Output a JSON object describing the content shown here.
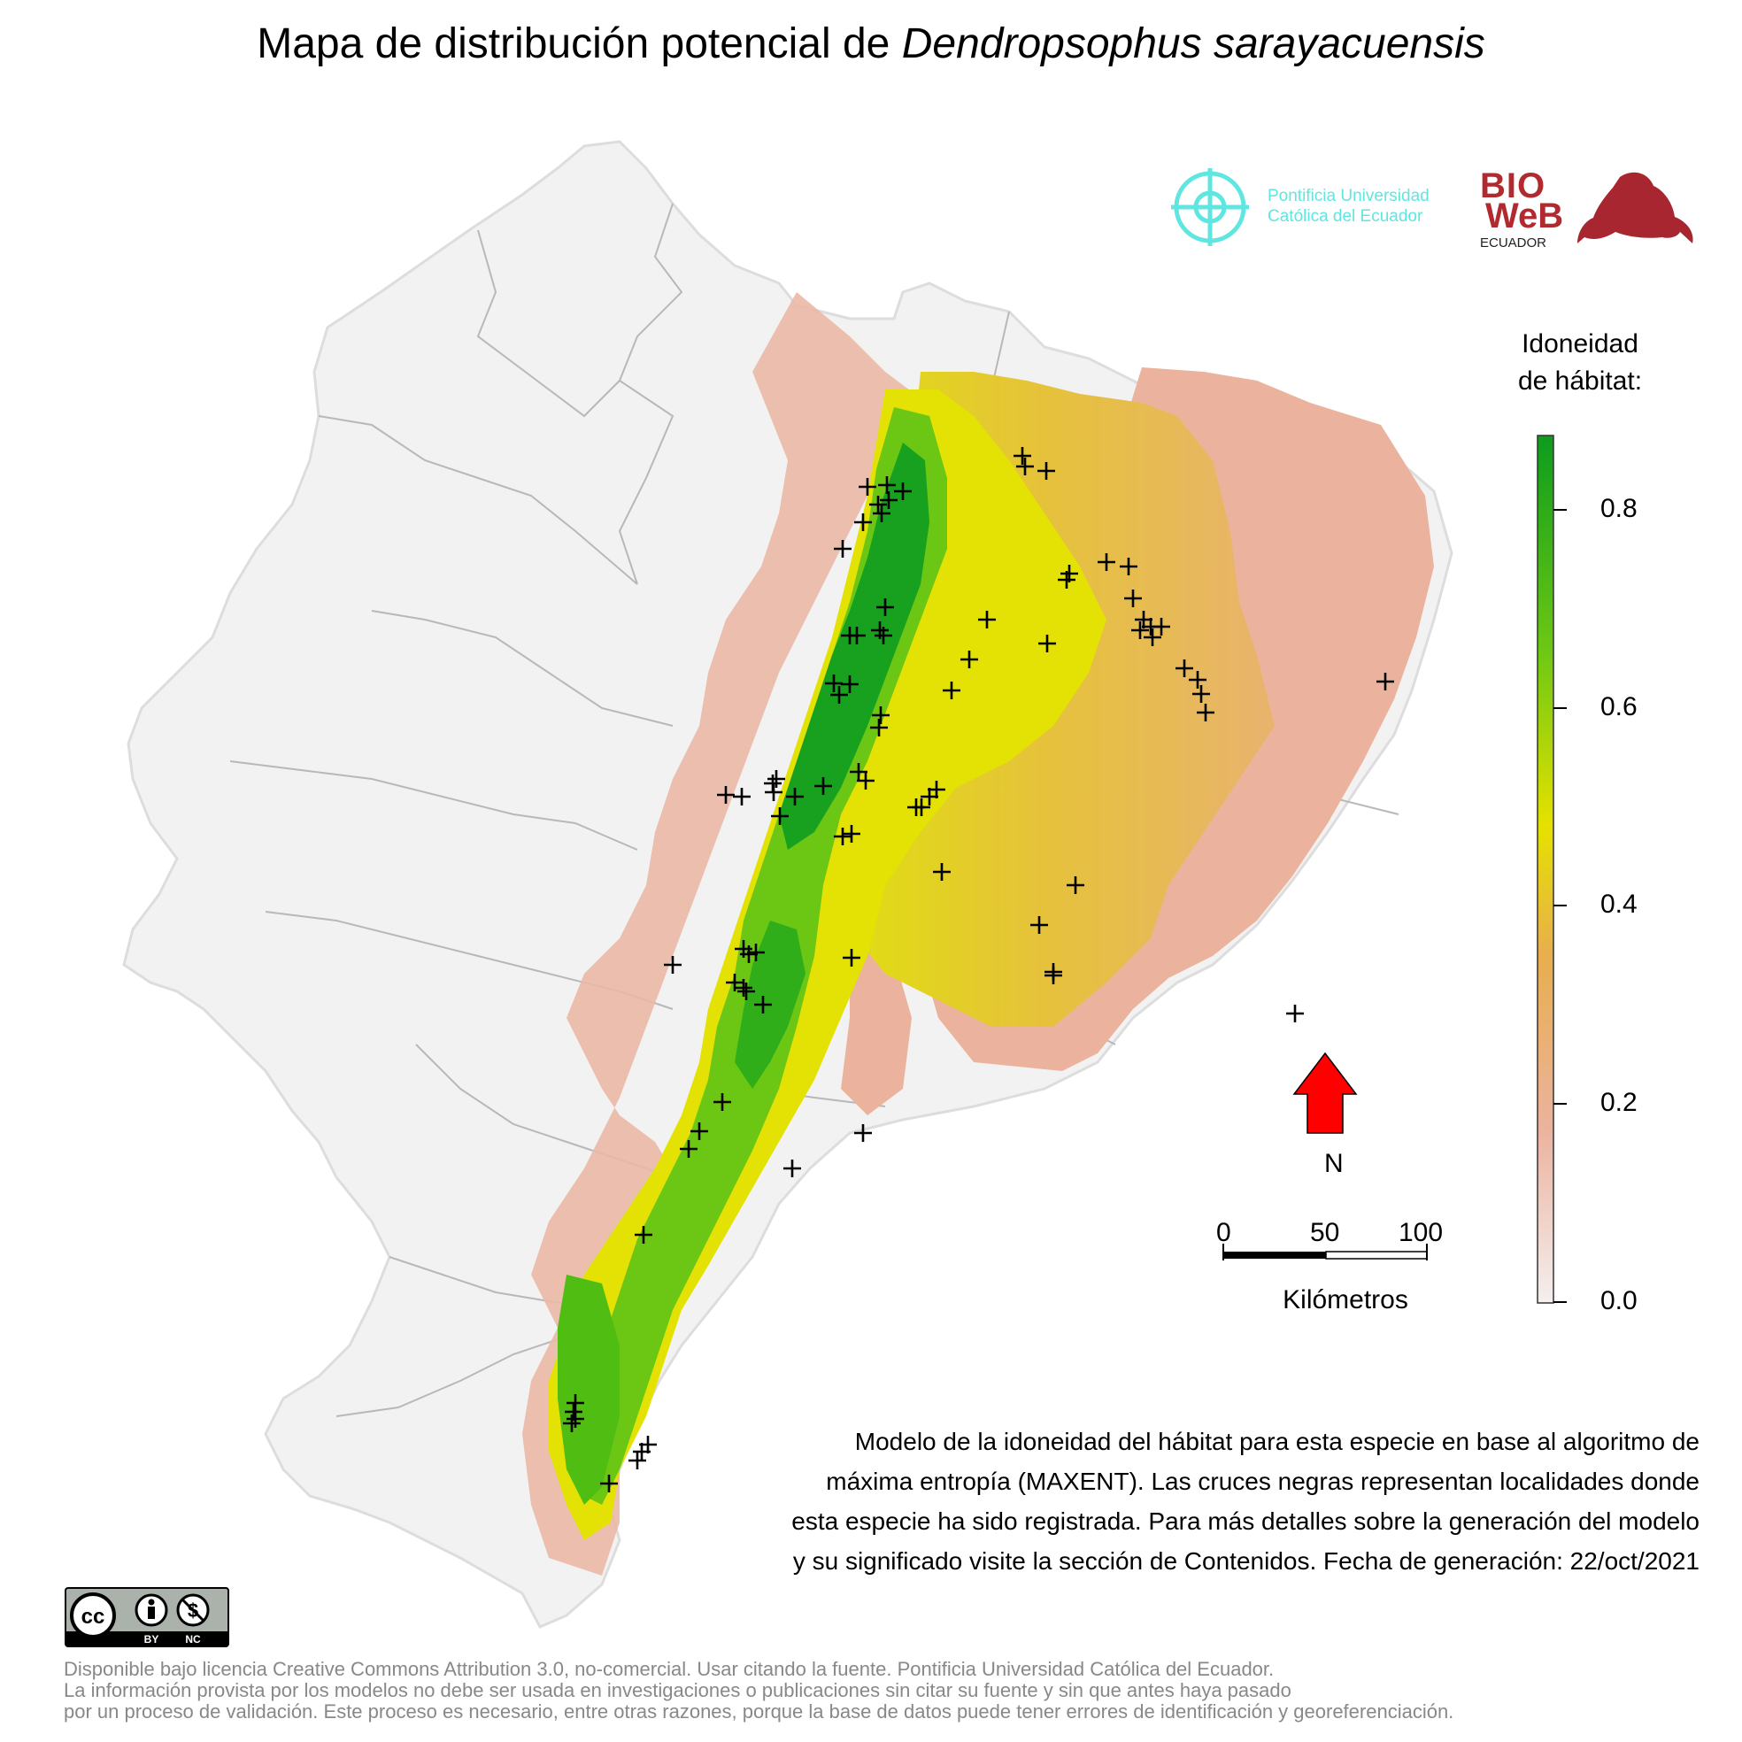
{
  "title": {
    "prefix": "Mapa de distribución potencial de ",
    "species": "Dendropsophus sarayacuensis"
  },
  "logos": {
    "puce_line1": "Pontificia Universidad",
    "puce_line2": "Católica del Ecuador",
    "bioweb_line1": "BIO",
    "bioweb_line2": "WeB",
    "bioweb_line3": "ECUADOR"
  },
  "legend": {
    "title_line1": "Idoneidad",
    "title_line2": "de hábitat:",
    "ticks": [
      "0.8",
      "0.6",
      "0.4",
      "0.2",
      "0.0"
    ],
    "colors": [
      "#f2f2f2",
      "#ebb39e",
      "#e8ae4e",
      "#e6e100",
      "#5ec50e",
      "#0c9c1c"
    ]
  },
  "scale_bar": {
    "labels": [
      "0",
      "50",
      "100"
    ],
    "unit": "Kilómetros"
  },
  "north": {
    "label": "N",
    "color": "#ff0000"
  },
  "description": [
    "Modelo de la idoneidad del hábitat para esta especie en base al algoritmo de",
    "máxima entropía (MAXENT). Las cruces negras representan localidades donde",
    "esta especie ha sido registrada. Para más detalles sobre la generación del modelo",
    "y su significado visite la sección de Contenidos. Fecha de generación: 22/oct/2021"
  ],
  "cc_badge": {
    "by": "BY",
    "nc": "NC"
  },
  "license": [
    "Disponible bajo licencia Creative Commons Attribution 3.0, no-comercial. Usar citando la fuente. Pontificia Universidad Católica del Ecuador.",
    "La información provista por los modelos no debe ser usada en investigaciones o publicaciones sin citar su fuente y sin que antes haya pasado",
    "por un proceso de validación. Este proceso es necesario, entre otras razones, porque la base de datos puede tener errores de identificación y georeferenciación."
  ],
  "records": [
    [
      1155,
      515
    ],
    [
      980,
      550
    ],
    [
      1020,
      555
    ],
    [
      1004,
      565
    ],
    [
      992,
      570
    ],
    [
      996,
      580
    ],
    [
      975,
      590
    ],
    [
      952,
      620
    ],
    [
      1002,
      548
    ],
    [
      1000,
      686
    ],
    [
      960,
      718
    ],
    [
      968,
      718
    ],
    [
      994,
      712
    ],
    [
      998,
      718
    ],
    [
      1115,
      700
    ],
    [
      1095,
      745
    ],
    [
      1075,
      780
    ],
    [
      1205,
      655
    ],
    [
      1275,
      640
    ],
    [
      1250,
      635
    ],
    [
      1183,
      727
    ],
    [
      1280,
      676
    ],
    [
      1292,
      700
    ],
    [
      1300,
      708
    ],
    [
      1288,
      712
    ],
    [
      1312,
      708
    ],
    [
      1302,
      720
    ],
    [
      1338,
      755
    ],
    [
      1353,
      768
    ],
    [
      1357,
      784
    ],
    [
      1362,
      805
    ],
    [
      1565,
      770
    ],
    [
      1182,
      532
    ],
    [
      1208,
      648
    ],
    [
      1158,
      527
    ],
    [
      948,
      785
    ],
    [
      942,
      772
    ],
    [
      960,
      773
    ],
    [
      995,
      808
    ],
    [
      993,
      822
    ],
    [
      820,
      898
    ],
    [
      838,
      900
    ],
    [
      873,
      885
    ],
    [
      877,
      880
    ],
    [
      874,
      895
    ],
    [
      898,
      900
    ],
    [
      930,
      888
    ],
    [
      970,
      872
    ],
    [
      978,
      882
    ],
    [
      1050,
      900
    ],
    [
      1058,
      892
    ],
    [
      1035,
      912
    ],
    [
      1041,
      912
    ],
    [
      881,
      922
    ],
    [
      952,
      945
    ],
    [
      962,
      942
    ],
    [
      1064,
      985
    ],
    [
      1174,
      1045
    ],
    [
      1190,
      1098
    ],
    [
      962,
      1082
    ],
    [
      840,
      1072
    ],
    [
      846,
      1078
    ],
    [
      854,
      1076
    ],
    [
      760,
      1090
    ],
    [
      830,
      1110
    ],
    [
      840,
      1116
    ],
    [
      843,
      1120
    ],
    [
      862,
      1135
    ],
    [
      816,
      1245
    ],
    [
      790,
      1278
    ],
    [
      778,
      1298
    ],
    [
      895,
      1320
    ],
    [
      975,
      1280
    ],
    [
      1463,
      1145
    ],
    [
      727,
      1395
    ],
    [
      650,
      1585
    ],
    [
      648,
      1595
    ],
    [
      650,
      1603
    ],
    [
      646,
      1608
    ],
    [
      732,
      1632
    ],
    [
      725,
      1640
    ],
    [
      720,
      1650
    ],
    [
      688,
      1676
    ],
    [
      1215,
      1000
    ],
    [
      1190,
      1102
    ]
  ]
}
